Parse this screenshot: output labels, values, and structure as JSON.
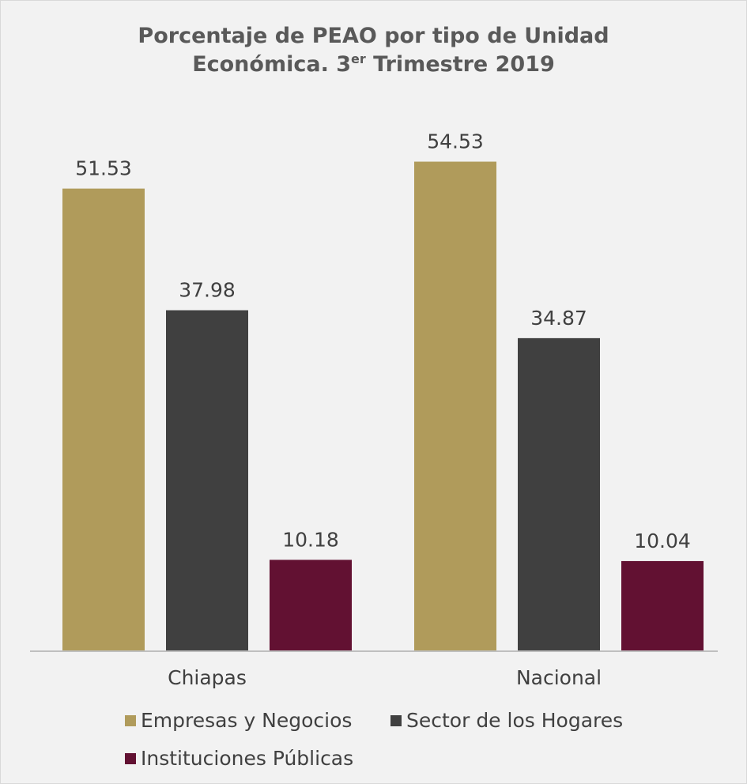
{
  "chart_data": {
    "type": "bar",
    "title_line1": "Porcentaje de PEAO por tipo de Unidad",
    "title_line2_main": "Económica. 3",
    "title_line2_sup": "er",
    "title_line2_end": " Trimestre 2019",
    "categories": [
      "Chiapas",
      "Nacional"
    ],
    "series": [
      {
        "name": "Empresas y Negocios",
        "color": "#b09b5b",
        "values": [
          51.53,
          54.53
        ]
      },
      {
        "name": "Sector de los Hogares",
        "color": "#404040",
        "values": [
          37.98,
          34.87
        ]
      },
      {
        "name": "Instituciones Públicas",
        "color": "#621132",
        "values": [
          10.18,
          10.04
        ]
      }
    ],
    "data_labels": [
      [
        "51.53",
        "54.53"
      ],
      [
        "37.98",
        "34.87"
      ],
      [
        "10.18",
        "10.04"
      ]
    ],
    "ylim": [
      0,
      60
    ],
    "grid": false,
    "legend_position": "bottom"
  }
}
